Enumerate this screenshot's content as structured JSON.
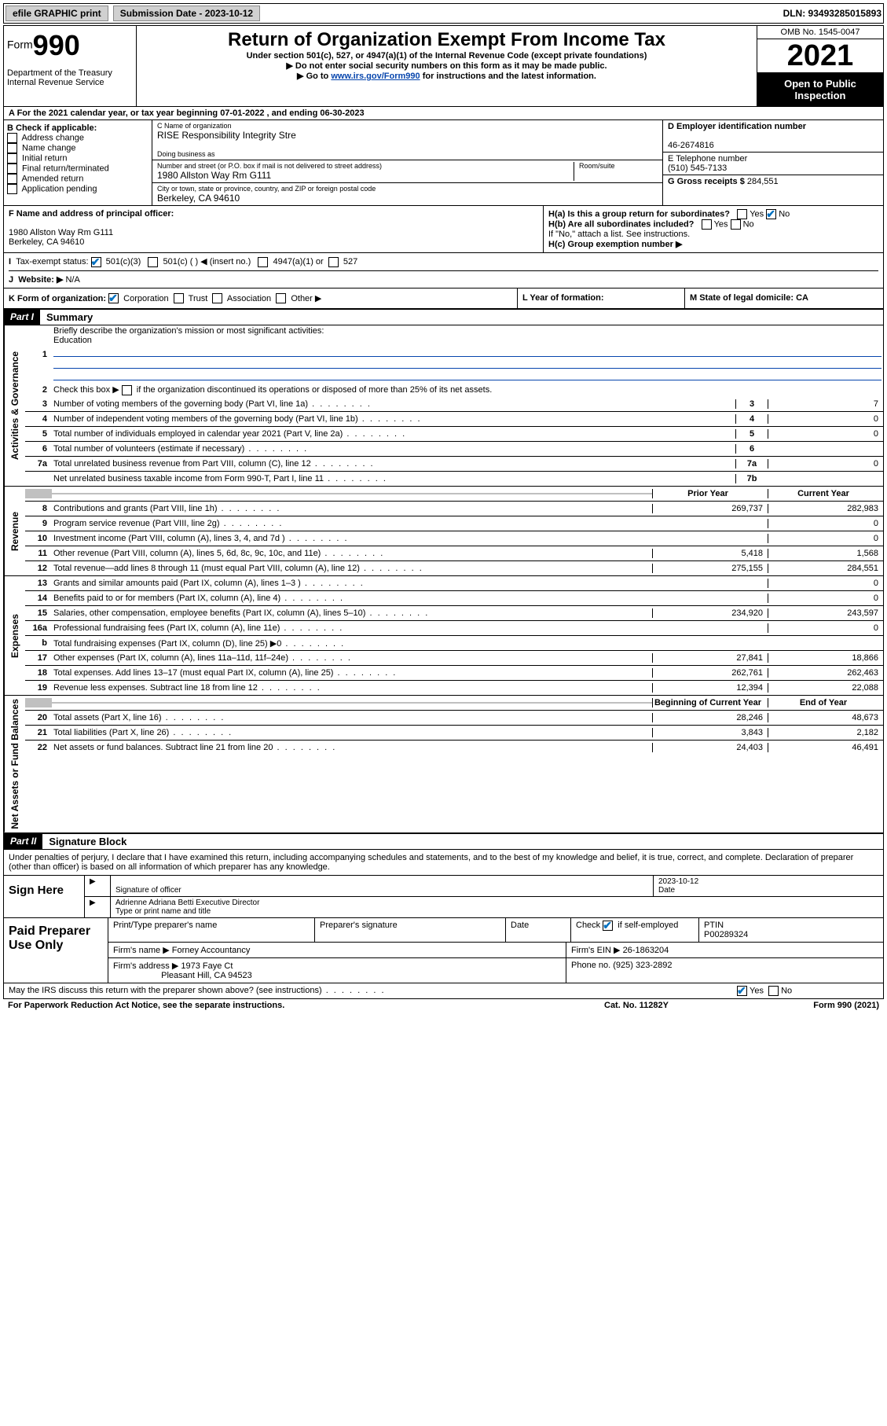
{
  "top": {
    "efile": "efile GRAPHIC print",
    "submission": "Submission Date - 2023-10-12",
    "dln": "DLN: 93493285015893"
  },
  "header": {
    "form_label": "Form",
    "form_num": "990",
    "title": "Return of Organization Exempt From Income Tax",
    "subtitle1": "Under section 501(c), 527, or 4947(a)(1) of the Internal Revenue Code (except private foundations)",
    "subtitle2": "▶ Do not enter social security numbers on this form as it may be made public.",
    "subtitle3": "▶ Go to ",
    "link": "www.irs.gov/Form990",
    "subtitle3b": " for instructions and the latest information.",
    "dept": "Department of the Treasury\nInternal Revenue Service",
    "omb": "OMB No. 1545-0047",
    "year": "2021",
    "open": "Open to Public Inspection"
  },
  "rowA": "A For the 2021 calendar year, or tax year beginning 07-01-2022   , and ending 06-30-2023",
  "colB": {
    "title": "B Check if applicable:",
    "items": [
      "Address change",
      "Name change",
      "Initial return",
      "Final return/terminated",
      "Amended return",
      "Application pending"
    ]
  },
  "colC": {
    "name_lbl": "C Name of organization",
    "name": "RISE Responsibility Integrity Stre",
    "dba_lbl": "Doing business as",
    "addr_lbl": "Number and street (or P.O. box if mail is not delivered to street address)",
    "room_lbl": "Room/suite",
    "addr": "1980 Allston Way Rm G111",
    "city_lbl": "City or town, state or province, country, and ZIP or foreign postal code",
    "city": "Berkeley, CA  94610"
  },
  "colD": {
    "d_lbl": "D Employer identification number",
    "d_val": "46-2674816",
    "e_lbl": "E Telephone number",
    "e_val": "(510) 545-7133",
    "g_lbl": "G Gross receipts $",
    "g_val": "284,551"
  },
  "rowF": {
    "f_lbl": "F Name and address of principal officer:",
    "f_addr1": "1980 Allston Way Rm G111",
    "f_addr2": "Berkeley, CA  94610",
    "ha": "H(a)  Is this a group return for subordinates?",
    "hb": "H(b)  Are all subordinates included?",
    "hb_note": "If \"No,\" attach a list. See instructions.",
    "hc": "H(c)  Group exemption number ▶"
  },
  "rowI": {
    "i": "Tax-exempt status:",
    "i_opts": [
      "501(c)(3)",
      "501(c) (   ) ◀ (insert no.)",
      "4947(a)(1) or",
      "527"
    ],
    "j": "Website: ▶",
    "j_val": "N/A"
  },
  "rowK": {
    "k": "K Form of organization:",
    "k_opts": [
      "Corporation",
      "Trust",
      "Association",
      "Other ▶"
    ],
    "l": "L Year of formation:",
    "m": "M State of legal domicile: CA"
  },
  "part1": {
    "label": "Part I",
    "title": "Summary",
    "groups": {
      "gov": "Activities & Governance",
      "rev": "Revenue",
      "exp": "Expenses",
      "net": "Net Assets or Fund Balances"
    },
    "l1": "Briefly describe the organization's mission or most significant activities:",
    "l1v": "Education",
    "l2": "Check this box ▶         if the organization discontinued its operations or disposed of more than 25% of its net assets.",
    "lines_single": [
      {
        "n": "3",
        "d": "Number of voting members of the governing body (Part VI, line 1a)",
        "b": "3",
        "v": "7"
      },
      {
        "n": "4",
        "d": "Number of independent voting members of the governing body (Part VI, line 1b)",
        "b": "4",
        "v": "0"
      },
      {
        "n": "5",
        "d": "Total number of individuals employed in calendar year 2021 (Part V, line 2a)",
        "b": "5",
        "v": "0"
      },
      {
        "n": "6",
        "d": "Total number of volunteers (estimate if necessary)",
        "b": "6",
        "v": ""
      },
      {
        "n": "7a",
        "d": "Total unrelated business revenue from Part VIII, column (C), line 12",
        "b": "7a",
        "v": "0"
      },
      {
        "n": "",
        "d": "Net unrelated business taxable income from Form 990-T, Part I, line 11",
        "b": "7b",
        "v": ""
      }
    ],
    "col_prior": "Prior Year",
    "col_curr": "Current Year",
    "col_beg": "Beginning of Current Year",
    "col_end": "End of Year",
    "lines_rev": [
      {
        "n": "8",
        "d": "Contributions and grants (Part VIII, line 1h)",
        "p": "269,737",
        "c": "282,983"
      },
      {
        "n": "9",
        "d": "Program service revenue (Part VIII, line 2g)",
        "p": "",
        "c": "0"
      },
      {
        "n": "10",
        "d": "Investment income (Part VIII, column (A), lines 3, 4, and 7d )",
        "p": "",
        "c": "0"
      },
      {
        "n": "11",
        "d": "Other revenue (Part VIII, column (A), lines 5, 6d, 8c, 9c, 10c, and 11e)",
        "p": "5,418",
        "c": "1,568"
      },
      {
        "n": "12",
        "d": "Total revenue—add lines 8 through 11 (must equal Part VIII, column (A), line 12)",
        "p": "275,155",
        "c": "284,551"
      }
    ],
    "lines_exp": [
      {
        "n": "13",
        "d": "Grants and similar amounts paid (Part IX, column (A), lines 1–3 )",
        "p": "",
        "c": "0"
      },
      {
        "n": "14",
        "d": "Benefits paid to or for members (Part IX, column (A), line 4)",
        "p": "",
        "c": "0"
      },
      {
        "n": "15",
        "d": "Salaries, other compensation, employee benefits (Part IX, column (A), lines 5–10)",
        "p": "234,920",
        "c": "243,597"
      },
      {
        "n": "16a",
        "d": "Professional fundraising fees (Part IX, column (A), line 11e)",
        "p": "",
        "c": "0"
      },
      {
        "n": "b",
        "d": "Total fundraising expenses (Part IX, column (D), line 25) ▶0",
        "p": "shade",
        "c": "shade"
      },
      {
        "n": "17",
        "d": "Other expenses (Part IX, column (A), lines 11a–11d, 11f–24e)",
        "p": "27,841",
        "c": "18,866"
      },
      {
        "n": "18",
        "d": "Total expenses. Add lines 13–17 (must equal Part IX, column (A), line 25)",
        "p": "262,761",
        "c": "262,463"
      },
      {
        "n": "19",
        "d": "Revenue less expenses. Subtract line 18 from line 12",
        "p": "12,394",
        "c": "22,088"
      }
    ],
    "lines_net": [
      {
        "n": "20",
        "d": "Total assets (Part X, line 16)",
        "p": "28,246",
        "c": "48,673"
      },
      {
        "n": "21",
        "d": "Total liabilities (Part X, line 26)",
        "p": "3,843",
        "c": "2,182"
      },
      {
        "n": "22",
        "d": "Net assets or fund balances. Subtract line 21 from line 20",
        "p": "24,403",
        "c": "46,491"
      }
    ]
  },
  "part2": {
    "label": "Part II",
    "title": "Signature Block",
    "decl": "Under penalties of perjury, I declare that I have examined this return, including accompanying schedules and statements, and to the best of my knowledge and belief, it is true, correct, and complete. Declaration of preparer (other than officer) is based on all information of which preparer has any knowledge.",
    "sign_here": "Sign Here",
    "sig_officer": "Signature of officer",
    "date": "Date",
    "date_val": "2023-10-12",
    "name_title": "Adrienne Adriana Betti  Executive Director",
    "name_title_lbl": "Type or print name and title",
    "paid": "Paid Preparer Use Only",
    "p_name": "Print/Type preparer's name",
    "p_sig": "Preparer's signature",
    "p_date": "Date",
    "p_check": "Check         if self-employed",
    "ptin_lbl": "PTIN",
    "ptin": "P00289324",
    "firm_name_lbl": "Firm's name   ▶",
    "firm_name": "Forney Accountancy",
    "firm_ein_lbl": "Firm's EIN ▶",
    "firm_ein": "26-1863204",
    "firm_addr_lbl": "Firm's address ▶",
    "firm_addr1": "1973 Faye Ct",
    "firm_addr2": "Pleasant Hill, CA  94523",
    "phone_lbl": "Phone no.",
    "phone": "(925) 323-2892",
    "discuss": "May the IRS discuss this return with the preparer shown above? (see instructions)"
  },
  "footer": {
    "f1": "For Paperwork Reduction Act Notice, see the separate instructions.",
    "f2": "Cat. No. 11282Y",
    "f3": "Form 990 (2021)"
  }
}
